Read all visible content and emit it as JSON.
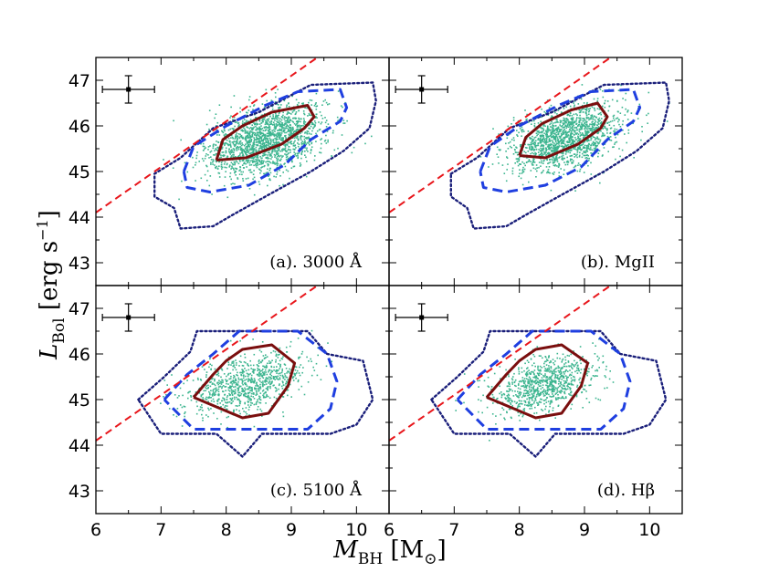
{
  "figure": {
    "xlabel": "M_BH [M_⊙]",
    "ylabel": "L_Bol [erg s^-1]",
    "ylabel_main": "L",
    "ylabel_sub": "Bol",
    "ylabel_unit": " [erg s",
    "ylabel_exp": "−1",
    "ylabel_close": "]",
    "xlabel_main": "M",
    "xlabel_sub": "BH",
    "xlabel_unit": " [M",
    "xlabel_unit_sub": "⊙",
    "xlabel_close": "]"
  },
  "chart_data": [
    {
      "type": "scatter",
      "panel": "a",
      "label": "(a). 3000 Å",
      "xlim": [
        6,
        10.5
      ],
      "ylim": [
        42.5,
        47.5
      ],
      "xticks": [
        "6",
        "7",
        "8",
        "9",
        "10"
      ],
      "yticks": [
        "43",
        "44",
        "45",
        "46",
        "47"
      ],
      "scatter": {
        "color": "#3cb58f",
        "center": [
          8.6,
          45.7
        ],
        "spread": [
          0.45,
          0.35
        ],
        "count": 1800
      },
      "error_bar": {
        "x": 6.5,
        "y": 46.8,
        "xerr": 0.4,
        "yerr": 0.3
      },
      "reference_line": {
        "color": "#e8161b",
        "style": "dashed",
        "points": [
          [
            6,
            44.1
          ],
          [
            9.4,
            47.5
          ]
        ]
      },
      "contours": [
        {
          "level": "inner",
          "color": "#7a0e0e",
          "style": "solid",
          "points": [
            [
              7.85,
              45.25
            ],
            [
              7.95,
              45.7
            ],
            [
              8.25,
              46.0
            ],
            [
              8.7,
              46.3
            ],
            [
              9.25,
              46.45
            ],
            [
              9.35,
              46.2
            ],
            [
              9.2,
              45.95
            ],
            [
              8.85,
              45.6
            ],
            [
              8.3,
              45.3
            ],
            [
              7.85,
              45.25
            ]
          ]
        },
        {
          "level": "middle",
          "color": "#1f3fe0",
          "style": "dashed",
          "points": [
            [
              7.35,
              45.0
            ],
            [
              7.5,
              45.55
            ],
            [
              8.0,
              46.0
            ],
            [
              8.6,
              46.45
            ],
            [
              9.1,
              46.75
            ],
            [
              9.75,
              46.8
            ],
            [
              9.85,
              46.4
            ],
            [
              9.75,
              46.1
            ],
            [
              9.3,
              45.7
            ],
            [
              8.9,
              45.15
            ],
            [
              8.35,
              44.7
            ],
            [
              7.75,
              44.55
            ],
            [
              7.4,
              44.65
            ],
            [
              7.35,
              45.0
            ]
          ]
        },
        {
          "level": "outer",
          "color": "#1a1f7a",
          "style": "dotted",
          "points": [
            [
              6.9,
              44.95
            ],
            [
              7.3,
              45.3
            ],
            [
              7.8,
              45.95
            ],
            [
              8.5,
              46.3
            ],
            [
              9.3,
              46.9
            ],
            [
              10.25,
              46.95
            ],
            [
              10.3,
              46.55
            ],
            [
              10.2,
              45.95
            ],
            [
              9.8,
              45.45
            ],
            [
              9.3,
              45.0
            ],
            [
              8.6,
              44.45
            ],
            [
              8.1,
              44.05
            ],
            [
              7.8,
              43.8
            ],
            [
              7.3,
              43.75
            ],
            [
              7.2,
              44.2
            ],
            [
              6.9,
              44.45
            ],
            [
              6.9,
              44.95
            ]
          ]
        }
      ]
    },
    {
      "type": "scatter",
      "panel": "b",
      "label": "(b). MgII",
      "xlim": [
        6,
        10.5
      ],
      "ylim": [
        42.5,
        47.5
      ],
      "xticks": [
        "6",
        "7",
        "8",
        "9",
        "10"
      ],
      "yticks": [
        "43",
        "44",
        "45",
        "46",
        "47"
      ],
      "scatter": {
        "color": "#3cb58f",
        "center": [
          8.7,
          45.75
        ],
        "spread": [
          0.42,
          0.33
        ],
        "count": 1600
      },
      "error_bar": {
        "x": 6.5,
        "y": 46.8,
        "xerr": 0.4,
        "yerr": 0.3
      },
      "reference_line": {
        "color": "#e8161b",
        "style": "dashed",
        "points": [
          [
            6,
            44.1
          ],
          [
            9.4,
            47.5
          ]
        ]
      },
      "contours": [
        {
          "level": "inner",
          "color": "#7a0e0e",
          "style": "solid",
          "points": [
            [
              8.0,
              45.35
            ],
            [
              8.1,
              45.75
            ],
            [
              8.35,
              46.05
            ],
            [
              8.8,
              46.35
            ],
            [
              9.2,
              46.5
            ],
            [
              9.35,
              46.2
            ],
            [
              9.25,
              45.95
            ],
            [
              8.9,
              45.6
            ],
            [
              8.4,
              45.3
            ],
            [
              8.0,
              45.35
            ]
          ]
        },
        {
          "level": "middle",
          "color": "#1f3fe0",
          "style": "dashed",
          "points": [
            [
              7.4,
              45.0
            ],
            [
              7.55,
              45.55
            ],
            [
              8.0,
              46.0
            ],
            [
              8.6,
              46.45
            ],
            [
              9.1,
              46.75
            ],
            [
              9.75,
              46.8
            ],
            [
              9.85,
              46.4
            ],
            [
              9.75,
              46.1
            ],
            [
              9.35,
              45.7
            ],
            [
              8.95,
              45.1
            ],
            [
              8.4,
              44.7
            ],
            [
              7.8,
              44.55
            ],
            [
              7.45,
              44.65
            ],
            [
              7.4,
              45.0
            ]
          ]
        },
        {
          "level": "outer",
          "color": "#1a1f7a",
          "style": "dotted",
          "points": [
            [
              6.95,
              44.95
            ],
            [
              7.35,
              45.3
            ],
            [
              7.85,
              45.95
            ],
            [
              8.5,
              46.3
            ],
            [
              9.3,
              46.9
            ],
            [
              10.25,
              46.95
            ],
            [
              10.3,
              46.55
            ],
            [
              10.2,
              45.95
            ],
            [
              9.8,
              45.45
            ],
            [
              9.3,
              45.0
            ],
            [
              8.6,
              44.45
            ],
            [
              8.1,
              44.05
            ],
            [
              7.8,
              43.8
            ],
            [
              7.3,
              43.75
            ],
            [
              7.2,
              44.2
            ],
            [
              6.95,
              44.45
            ],
            [
              6.95,
              44.95
            ]
          ]
        }
      ]
    },
    {
      "type": "scatter",
      "panel": "c",
      "label": "(c). 5100 Å",
      "xlim": [
        6,
        10.5
      ],
      "ylim": [
        42.5,
        47.5
      ],
      "xticks": [
        "6",
        "7",
        "8",
        "9",
        "10"
      ],
      "yticks": [
        "43",
        "44",
        "45",
        "46",
        "47"
      ],
      "scatter": {
        "color": "#3cb58f",
        "center": [
          8.3,
          45.35
        ],
        "spread": [
          0.45,
          0.3
        ],
        "count": 900
      },
      "error_bar": {
        "x": 6.5,
        "y": 46.8,
        "xerr": 0.4,
        "yerr": 0.3
      },
      "reference_line": {
        "color": "#e8161b",
        "style": "dashed",
        "points": [
          [
            6,
            44.1
          ],
          [
            9.4,
            47.5
          ]
        ]
      },
      "contours": [
        {
          "level": "inner",
          "color": "#7a0e0e",
          "style": "solid",
          "points": [
            [
              7.5,
              45.05
            ],
            [
              7.8,
              45.55
            ],
            [
              8.0,
              45.85
            ],
            [
              8.25,
              46.1
            ],
            [
              8.7,
              46.2
            ],
            [
              9.05,
              45.8
            ],
            [
              8.95,
              45.3
            ],
            [
              8.65,
              44.7
            ],
            [
              8.25,
              44.6
            ],
            [
              7.5,
              45.05
            ]
          ]
        },
        {
          "level": "middle",
          "color": "#1f3fe0",
          "style": "dashed",
          "points": [
            [
              7.05,
              45.0
            ],
            [
              7.4,
              45.55
            ],
            [
              7.8,
              46.0
            ],
            [
              8.2,
              46.5
            ],
            [
              9.1,
              46.5
            ],
            [
              9.55,
              46.0
            ],
            [
              9.7,
              45.4
            ],
            [
              9.6,
              44.8
            ],
            [
              9.25,
              44.35
            ],
            [
              7.5,
              44.35
            ],
            [
              7.05,
              45.0
            ]
          ]
        },
        {
          "level": "outer",
          "color": "#1a1f7a",
          "style": "dotted",
          "points": [
            [
              6.65,
              45.0
            ],
            [
              7.05,
              45.5
            ],
            [
              7.45,
              46.05
            ],
            [
              7.55,
              46.5
            ],
            [
              9.25,
              46.5
            ],
            [
              9.55,
              46.0
            ],
            [
              10.1,
              45.85
            ],
            [
              10.25,
              45.0
            ],
            [
              10.0,
              44.45
            ],
            [
              9.6,
              44.25
            ],
            [
              8.55,
              44.25
            ],
            [
              8.25,
              43.75
            ],
            [
              7.85,
              44.25
            ],
            [
              7.0,
              44.25
            ],
            [
              6.65,
              45.0
            ]
          ]
        }
      ]
    },
    {
      "type": "scatter",
      "panel": "d",
      "label": "(d). Hβ",
      "xlim": [
        6,
        10.5
      ],
      "ylim": [
        42.5,
        47.5
      ],
      "xticks": [
        "6",
        "7",
        "8",
        "9",
        "10"
      ],
      "yticks": [
        "43",
        "44",
        "45",
        "46",
        "47"
      ],
      "scatter": {
        "color": "#3cb58f",
        "center": [
          8.35,
          45.35
        ],
        "spread": [
          0.42,
          0.3
        ],
        "count": 900
      },
      "error_bar": {
        "x": 6.5,
        "y": 46.8,
        "xerr": 0.4,
        "yerr": 0.3
      },
      "reference_line": {
        "color": "#e8161b",
        "style": "dashed",
        "points": [
          [
            6,
            44.1
          ],
          [
            9.4,
            47.5
          ]
        ]
      },
      "contours": [
        {
          "level": "inner",
          "color": "#7a0e0e",
          "style": "solid",
          "points": [
            [
              7.5,
              45.05
            ],
            [
              7.8,
              45.55
            ],
            [
              8.0,
              45.85
            ],
            [
              8.25,
              46.1
            ],
            [
              8.65,
              46.2
            ],
            [
              9.05,
              45.8
            ],
            [
              8.95,
              45.3
            ],
            [
              8.65,
              44.7
            ],
            [
              8.25,
              44.6
            ],
            [
              7.5,
              45.05
            ]
          ]
        },
        {
          "level": "middle",
          "color": "#1f3fe0",
          "style": "dashed",
          "points": [
            [
              7.05,
              45.0
            ],
            [
              7.4,
              45.55
            ],
            [
              7.8,
              46.0
            ],
            [
              8.2,
              46.5
            ],
            [
              9.1,
              46.5
            ],
            [
              9.55,
              46.0
            ],
            [
              9.7,
              45.4
            ],
            [
              9.6,
              44.8
            ],
            [
              9.25,
              44.35
            ],
            [
              7.5,
              44.35
            ],
            [
              7.05,
              45.0
            ]
          ]
        },
        {
          "level": "outer",
          "color": "#1a1f7a",
          "style": "dotted",
          "points": [
            [
              6.65,
              45.0
            ],
            [
              7.05,
              45.5
            ],
            [
              7.45,
              46.05
            ],
            [
              7.55,
              46.5
            ],
            [
              9.25,
              46.5
            ],
            [
              9.55,
              46.0
            ],
            [
              10.1,
              45.85
            ],
            [
              10.25,
              45.0
            ],
            [
              10.0,
              44.45
            ],
            [
              9.6,
              44.25
            ],
            [
              8.55,
              44.25
            ],
            [
              8.25,
              43.75
            ],
            [
              7.85,
              44.25
            ],
            [
              7.0,
              44.25
            ],
            [
              6.65,
              45.0
            ]
          ]
        }
      ]
    }
  ]
}
